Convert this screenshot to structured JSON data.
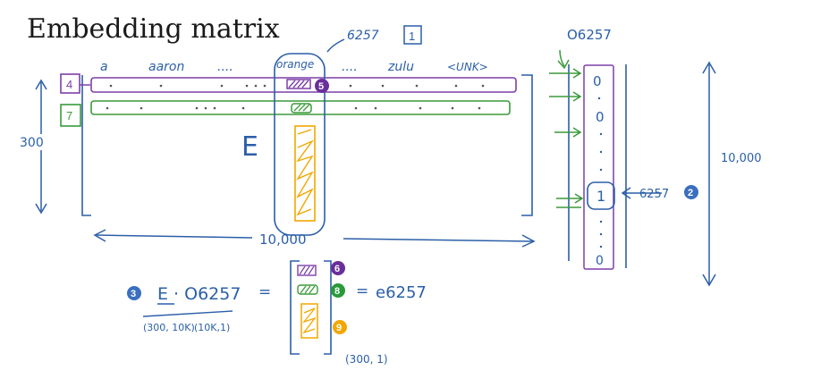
{
  "title": "Embedding matrix",
  "words": {
    "a": "a",
    "aaron": "aaron",
    "dots1": "....",
    "orange": "orange",
    "dots2": "....",
    "zulu": "zulu",
    "unk": "<UNK>"
  },
  "matrix": {
    "name": "E",
    "rows_label": "300",
    "cols_label": "10,000",
    "index_label": "6257",
    "row_markers": [
      "4",
      "7"
    ]
  },
  "onehot": {
    "label": "O6257",
    "pointer_label": "6257",
    "size_label": "10,000",
    "top_entry": "0",
    "second_entry": "0",
    "one_entry": "1",
    "bottom_entry": "0"
  },
  "equation": {
    "lhs": "E · O6257",
    "eq1": "=",
    "eq2": "=",
    "result": "e6257",
    "dim_left": "(300, 10K)",
    "dim_right": "(10K,1)",
    "dim_result": "(300, 1)"
  },
  "badges": [
    "1",
    "2",
    "3",
    "5",
    "6",
    "8",
    "9"
  ],
  "colors": {
    "blue": "#2b5fa8",
    "purple": "#7d3fa8",
    "green": "#3a9a3a",
    "orange": "#f2a700",
    "badge_blue": "#3a6fbf",
    "badge_purple": "#6a2f9a",
    "badge_green": "#2a9a3a"
  }
}
